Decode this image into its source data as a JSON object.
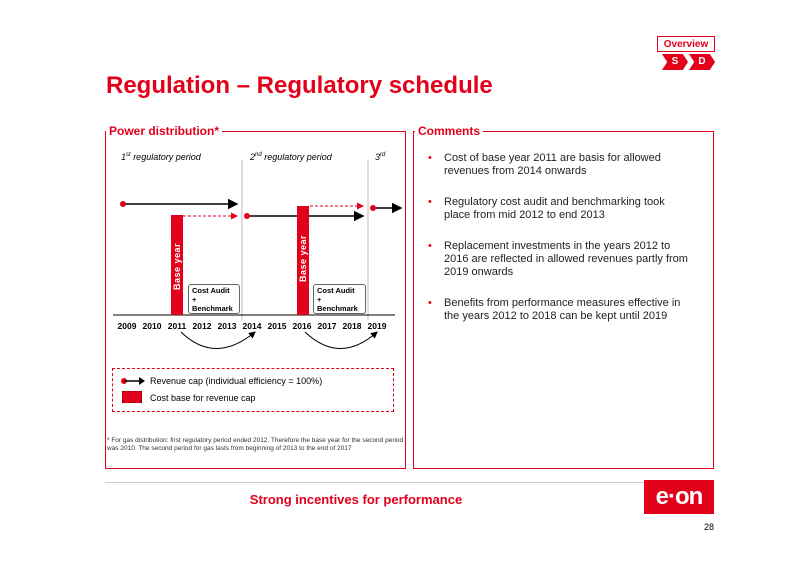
{
  "nav": {
    "overview": "Overview",
    "s": "S",
    "d": "D"
  },
  "title": "Regulation – Regulatory schedule",
  "left_panel": {
    "title": "Power distribution*",
    "periods": [
      {
        "num": "1",
        "sup": "st",
        "text": " regulatory period"
      },
      {
        "num": "2",
        "sup": "nd",
        "text": " regulatory period"
      },
      {
        "num": "3",
        "sup": "rd",
        "text": ""
      }
    ],
    "years": [
      "2009",
      "2010",
      "2011",
      "2012",
      "2013",
      "2014",
      "2015",
      "2016",
      "2017",
      "2018",
      "2019"
    ],
    "base_year_label": "Base year",
    "cost_audit": {
      "line1": "Cost Audit",
      "line2": "+",
      "line3": "Benchmark"
    },
    "legend": {
      "revenue_cap": "Revenue cap (individual efficiency = 100%)",
      "cost_base": "Cost base for revenue cap"
    },
    "footnote": "* For gas distribution: first regulatory period ended 2012. Therefore the base year for the second period was 2010. The second period for gas lasts from beginning of 2013 to the end of 2017"
  },
  "right_panel": {
    "title": "Comments",
    "bullets": [
      "Cost of base year 2011 are basis for allowed revenues from 2014 onwards",
      "Regulatory cost audit and benchmarking took place from mid 2012 to end 2013",
      "Replacement investments in the years 2012 to 2016 are reflected in allowed revenues partly from 2019 onwards",
      "Benefits from performance measures effective in the years 2012 to 2018 can be kept until 2019"
    ]
  },
  "tagline": "Strong incentives for performance",
  "logo": "e·on",
  "page_number": "28",
  "colors": {
    "accent": "#e2001a"
  }
}
